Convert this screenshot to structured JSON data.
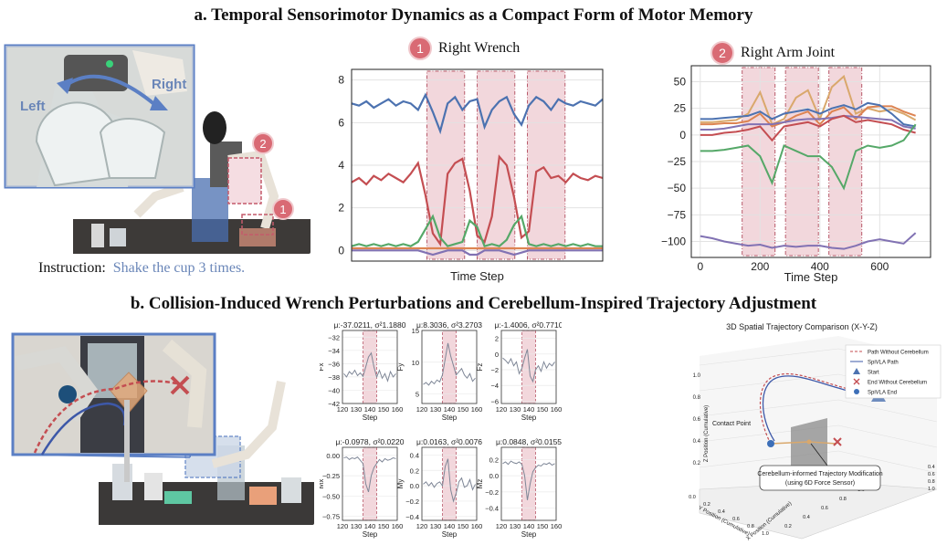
{
  "section_a": {
    "title": "a. Temporal Sensorimotor Dynamics as a Compact Form of Motor Memory",
    "photo": {
      "left_label": "Left",
      "right_label": "Right",
      "badge_1": "1",
      "badge_2": "2"
    },
    "instruction_label": "Instruction:",
    "instruction_text": "Shake the cup 3 times."
  },
  "section_b": {
    "title": "b. Collision-Induced Wrench Perturbations and Cerebellum-Inspired Trajectory Adjustment"
  },
  "colors": {
    "blue": "#4c72b0",
    "red": "#c44e52",
    "green": "#55a868",
    "purple": "#8172b3",
    "orange": "#dd8452",
    "tan": "#d9a86c",
    "shade": "#f2d7dc",
    "shade_edge": "#b85a6a",
    "gray_line": "#7f8797"
  },
  "chart_data": [
    {
      "id": "right_wrench",
      "type": "line",
      "badge": "1",
      "title": "Right Wrench",
      "xlabel": "Time Step",
      "ylabel": "",
      "ylim": [
        -0.5,
        8.5
      ],
      "yticks": [
        "0",
        "2",
        "4",
        "6",
        "8"
      ],
      "xticks": [],
      "grid": true,
      "highlight_ranges": [
        [
          0.3,
          0.45
        ],
        [
          0.5,
          0.65
        ],
        [
          0.7,
          0.85
        ]
      ],
      "series": [
        {
          "color_key": "blue",
          "values": [
            6.9,
            6.8,
            7.0,
            6.7,
            6.9,
            7.1,
            6.8,
            7.0,
            6.9,
            6.6,
            7.3,
            6.5,
            5.6,
            6.9,
            7.2,
            6.6,
            7.0,
            7.1,
            5.8,
            6.6,
            7.0,
            7.2,
            6.4,
            5.9,
            6.8,
            7.2,
            7.0,
            6.6,
            7.1,
            6.9,
            6.8,
            7.0,
            6.9,
            6.8,
            7.1
          ]
        },
        {
          "color_key": "red",
          "values": [
            3.2,
            3.4,
            3.1,
            3.5,
            3.3,
            3.6,
            3.4,
            3.2,
            3.6,
            4.1,
            2.6,
            0.8,
            0.3,
            3.6,
            4.1,
            4.3,
            2.8,
            0.7,
            0.4,
            1.6,
            4.4,
            4.0,
            2.5,
            0.6,
            0.9,
            3.7,
            3.9,
            3.4,
            3.5,
            3.2,
            3.6,
            3.4,
            3.3,
            3.5,
            3.4
          ]
        },
        {
          "color_key": "green",
          "values": [
            0.2,
            0.3,
            0.2,
            0.3,
            0.2,
            0.3,
            0.2,
            0.3,
            0.2,
            0.4,
            1.0,
            1.6,
            0.6,
            0.2,
            0.3,
            0.4,
            1.4,
            1.1,
            0.2,
            0.3,
            0.2,
            0.5,
            1.2,
            1.6,
            0.3,
            0.2,
            0.3,
            0.2,
            0.3,
            0.2,
            0.3,
            0.2,
            0.3,
            0.2,
            0.2
          ]
        },
        {
          "color_key": "orange",
          "values": [
            0.1,
            0.1,
            0.1,
            0.1,
            0.1,
            0.1,
            0.1,
            0.1,
            0.1,
            0.1,
            0.1,
            0.1,
            0.1,
            0.1,
            0.1,
            0.1,
            0.1,
            0.1,
            0.1,
            0.1,
            0.1,
            0.1,
            0.1,
            0.1,
            0.1,
            0.1,
            0.1,
            0.1,
            0.1,
            0.1,
            0.1,
            0.1,
            0.1,
            0.1,
            0.1
          ]
        },
        {
          "color_key": "purple",
          "values": [
            0.0,
            0.0,
            0.0,
            0.0,
            0.0,
            0.0,
            0.0,
            0.0,
            0.0,
            0.0,
            -0.1,
            -0.2,
            -0.1,
            0.0,
            0.0,
            0.0,
            -0.2,
            -0.2,
            0.0,
            0.0,
            0.0,
            -0.1,
            -0.2,
            -0.1,
            0.0,
            0.0,
            0.0,
            0.0,
            0.0,
            0.0,
            0.0,
            0.0,
            0.0,
            0.0,
            0.0
          ]
        }
      ]
    },
    {
      "id": "right_arm_joint",
      "type": "line",
      "badge": "2",
      "title": "Right Arm Joint",
      "xlabel": "Time Step",
      "ylabel": "",
      "xlim": [
        -30,
        770
      ],
      "ylim": [
        -115,
        65
      ],
      "xticks": [
        "0",
        "200",
        "400",
        "600"
      ],
      "xtick_values": [
        0,
        200,
        400,
        600
      ],
      "yticks": [
        "50",
        "25",
        "0",
        "−25",
        "−50",
        "−75",
        "−100"
      ],
      "ytick_values": [
        50,
        25,
        0,
        -25,
        -50,
        -75,
        -100
      ],
      "grid": true,
      "highlight_ranges": [
        [
          140,
          250
        ],
        [
          285,
          395
        ],
        [
          430,
          540
        ]
      ],
      "x": [
        0,
        40,
        80,
        120,
        160,
        200,
        240,
        280,
        320,
        360,
        400,
        440,
        480,
        520,
        560,
        600,
        640,
        680,
        720
      ],
      "series": [
        {
          "color_key": "tan",
          "values": [
            12,
            12,
            13,
            14,
            20,
            40,
            10,
            15,
            35,
            42,
            15,
            45,
            55,
            20,
            25,
            22,
            24,
            20,
            14
          ]
        },
        {
          "color_key": "orange",
          "values": [
            10,
            10,
            11,
            11,
            13,
            20,
            8,
            12,
            18,
            22,
            10,
            22,
            26,
            15,
            26,
            27,
            27,
            22,
            18
          ]
        },
        {
          "color_key": "blue",
          "values": [
            15,
            15,
            16,
            17,
            18,
            22,
            15,
            20,
            22,
            24,
            20,
            25,
            28,
            24,
            30,
            28,
            20,
            10,
            8
          ]
        },
        {
          "color_key": "purple",
          "values": [
            5,
            5,
            6,
            8,
            10,
            10,
            10,
            12,
            14,
            15,
            15,
            16,
            18,
            17,
            16,
            15,
            14,
            8,
            6
          ]
        },
        {
          "color_key": "red",
          "values": [
            0,
            0,
            2,
            3,
            5,
            8,
            -5,
            8,
            10,
            12,
            8,
            15,
            18,
            12,
            14,
            12,
            10,
            5,
            2
          ]
        },
        {
          "color_key": "green",
          "values": [
            -15,
            -15,
            -14,
            -12,
            -10,
            -20,
            -45,
            -10,
            -15,
            -20,
            -20,
            -30,
            -50,
            -15,
            -10,
            -12,
            -10,
            -5,
            10
          ]
        },
        {
          "color_key": "purple",
          "values": [
            -95,
            -97,
            -100,
            -102,
            -104,
            -103,
            -106,
            -104,
            -105,
            -104,
            -104,
            -106,
            -107,
            -104,
            -100,
            -98,
            -100,
            -102,
            -92
          ]
        }
      ]
    },
    {
      "id": "Fx",
      "type": "line",
      "title": "μ:-37.0211, σ²1.1880",
      "ylabel": "Fx",
      "xlabel": "Step",
      "xlim": [
        120,
        160
      ],
      "ylim": [
        -42,
        -31
      ],
      "xticks": [
        "120",
        "130",
        "140",
        "150",
        "160"
      ],
      "xtick_values": [
        120,
        130,
        140,
        150,
        160
      ],
      "yticks": [
        "−32",
        "−34",
        "−36",
        "−38",
        "−40",
        "−42"
      ],
      "ytick_values": [
        -32,
        -34,
        -36,
        -38,
        -40,
        -42
      ],
      "highlight_ranges": [
        [
          135,
          145
        ]
      ],
      "x": [
        121,
        123,
        125,
        127,
        129,
        131,
        133,
        135,
        137,
        139,
        141,
        143,
        145,
        147,
        149,
        151,
        153,
        155,
        157,
        159
      ],
      "series": [
        {
          "color_key": "gray_line",
          "values": [
            -37.5,
            -38.0,
            -37.2,
            -37.6,
            -37.0,
            -37.8,
            -37.4,
            -37.9,
            -36.5,
            -35.0,
            -34.4,
            -36.5,
            -38.0,
            -37.0,
            -38.2,
            -37.5,
            -38.6,
            -37.2,
            -38.0,
            -37.5
          ]
        }
      ]
    },
    {
      "id": "Fy",
      "type": "line",
      "title": "μ:8.3036, σ²3.2703",
      "ylabel": "Fy",
      "xlabel": "Step",
      "xlim": [
        120,
        160
      ],
      "ylim": [
        3.5,
        15
      ],
      "xticks": [
        "120",
        "130",
        "140",
        "150",
        "160"
      ],
      "xtick_values": [
        120,
        130,
        140,
        150,
        160
      ],
      "yticks": [
        "5",
        "10",
        "15"
      ],
      "ytick_values": [
        5,
        10,
        15
      ],
      "highlight_ranges": [
        [
          135,
          145
        ]
      ],
      "x": [
        121,
        123,
        125,
        127,
        129,
        131,
        133,
        135,
        137,
        139,
        141,
        143,
        145,
        147,
        149,
        151,
        153,
        155,
        157,
        159
      ],
      "series": [
        {
          "color_key": "gray_line",
          "values": [
            6.5,
            6.8,
            6.4,
            7.0,
            6.6,
            7.2,
            6.9,
            8.0,
            10.5,
            13.0,
            11.0,
            9.5,
            8.0,
            8.5,
            9.0,
            8.0,
            7.5,
            8.2,
            7.0,
            7.5
          ]
        }
      ]
    },
    {
      "id": "Fz",
      "type": "line",
      "title": "μ:-1.4006, σ²0.7710",
      "ylabel": "Fz",
      "xlabel": "Step",
      "xlim": [
        120,
        160
      ],
      "ylim": [
        -6.3,
        3
      ],
      "xticks": [
        "120",
        "130",
        "140",
        "150",
        "160"
      ],
      "xtick_values": [
        120,
        130,
        140,
        150,
        160
      ],
      "yticks": [
        "2",
        "0",
        "−2",
        "−4",
        "−6"
      ],
      "ytick_values": [
        2,
        0,
        -2,
        -4,
        -6
      ],
      "highlight_ranges": [
        [
          135,
          145
        ]
      ],
      "x": [
        121,
        123,
        125,
        127,
        129,
        131,
        133,
        135,
        137,
        139,
        141,
        143,
        145,
        147,
        149,
        151,
        153,
        155,
        157,
        159
      ],
      "series": [
        {
          "color_key": "gray_line",
          "values": [
            -0.5,
            -0.8,
            -1.2,
            -0.6,
            -1.5,
            -1.0,
            -2.5,
            -1.8,
            -0.5,
            0.6,
            -2.8,
            -3.5,
            -2.0,
            -1.5,
            -2.2,
            -1.0,
            -1.8,
            -1.2,
            -1.5,
            -1.0
          ]
        }
      ]
    },
    {
      "id": "Mx",
      "type": "line",
      "title": "μ:-0.0978, σ²0.0220",
      "ylabel": "Mx",
      "xlabel": "Step",
      "xlim": [
        120,
        160
      ],
      "ylim": [
        -0.8,
        0.1
      ],
      "xticks": [
        "120",
        "130",
        "140",
        "150",
        "160"
      ],
      "xtick_values": [
        120,
        130,
        140,
        150,
        160
      ],
      "yticks": [
        "0.00",
        "−0.25",
        "−0.50",
        "−0.75"
      ],
      "ytick_values": [
        0.0,
        -0.25,
        -0.5,
        -0.75
      ],
      "highlight_ranges": [
        [
          135,
          145
        ]
      ],
      "x": [
        121,
        123,
        125,
        127,
        129,
        131,
        133,
        135,
        137,
        139,
        141,
        143,
        145,
        147,
        149,
        151,
        153,
        155,
        157,
        159
      ],
      "series": [
        {
          "color_key": "gray_line",
          "values": [
            -0.03,
            -0.02,
            -0.05,
            -0.03,
            -0.04,
            -0.02,
            -0.06,
            -0.1,
            -0.35,
            -0.45,
            -0.25,
            -0.15,
            -0.1,
            -0.05,
            -0.08,
            -0.04,
            -0.06,
            -0.05,
            -0.03,
            -0.04
          ]
        }
      ]
    },
    {
      "id": "My",
      "type": "line",
      "title": "μ:0.0163, σ²0.0076",
      "ylabel": "My",
      "xlabel": "Step",
      "xlim": [
        120,
        160
      ],
      "ylim": [
        -0.45,
        0.5
      ],
      "xticks": [
        "120",
        "130",
        "140",
        "150",
        "160"
      ],
      "xtick_values": [
        120,
        130,
        140,
        150,
        160
      ],
      "yticks": [
        "0.4",
        "0.2",
        "0.0",
        "−0.2",
        "−0.4"
      ],
      "ytick_values": [
        0.4,
        0.2,
        0.0,
        -0.2,
        -0.4
      ],
      "highlight_ranges": [
        [
          135,
          145
        ]
      ],
      "x": [
        121,
        123,
        125,
        127,
        129,
        131,
        133,
        135,
        137,
        139,
        141,
        143,
        145,
        147,
        149,
        151,
        153,
        155,
        157,
        159
      ],
      "series": [
        {
          "color_key": "gray_line",
          "values": [
            0.02,
            0.05,
            0.0,
            0.04,
            -0.02,
            0.03,
            0.05,
            0.0,
            0.25,
            0.35,
            -0.05,
            -0.2,
            -0.1,
            0.05,
            0.1,
            -0.02,
            0.0,
            0.08,
            -0.05,
            0.02
          ]
        }
      ]
    },
    {
      "id": "Mz",
      "type": "line",
      "title": "μ:0.0848, σ²0.0155",
      "ylabel": "Mz",
      "xlabel": "Step",
      "xlim": [
        120,
        160
      ],
      "ylim": [
        -0.55,
        0.35
      ],
      "xticks": [
        "120",
        "130",
        "140",
        "150",
        "160"
      ],
      "xtick_values": [
        120,
        130,
        140,
        150,
        160
      ],
      "yticks": [
        "0.2",
        "0.0",
        "−0.2",
        "−0.4"
      ],
      "ytick_values": [
        0.2,
        0.0,
        -0.2,
        -0.4
      ],
      "highlight_ranges": [
        [
          135,
          145
        ]
      ],
      "x": [
        121,
        123,
        125,
        127,
        129,
        131,
        133,
        135,
        137,
        139,
        141,
        143,
        145,
        147,
        149,
        151,
        153,
        155,
        157,
        159
      ],
      "series": [
        {
          "color_key": "gray_line",
          "values": [
            0.15,
            0.17,
            0.14,
            0.18,
            0.16,
            0.15,
            0.17,
            0.14,
            0.0,
            -0.3,
            -0.1,
            0.05,
            0.1,
            0.13,
            0.12,
            0.15,
            0.14,
            0.16,
            0.13,
            0.15
          ]
        }
      ]
    },
    {
      "id": "trajectory_3d",
      "type": "scatter",
      "title": "3D Spatial Trajectory Comparison (X-Y-Z)",
      "xlabel": "X Position (Cumulative)",
      "ylabel": "Y Position (Cumulative)",
      "zlabel": "Z Position (Cumulative)",
      "z_ticks": [
        "1.0",
        "0.8",
        "0.6",
        "0.4",
        "0.2"
      ],
      "y_ticks": [
        "0.0",
        "0.2",
        "0.4",
        "0.6",
        "0.8",
        "1.0"
      ],
      "x_ticks": [
        "0.2",
        "0.4",
        "0.6",
        "0.8",
        "1.0"
      ],
      "right_ticks": [
        "0.4",
        "0.6",
        "0.8",
        "1.0"
      ],
      "legend": [
        "Path Without Cerebellum",
        "SpiVLA Path",
        "Start",
        "End Without Cerebellum",
        "SpiVLA End"
      ],
      "legend_position": "top-right",
      "contact_label": "Contact Point",
      "annotation": [
        "Cerebellum-informed Trajectory Modification",
        "(using 6D Force Sensor)"
      ]
    }
  ]
}
